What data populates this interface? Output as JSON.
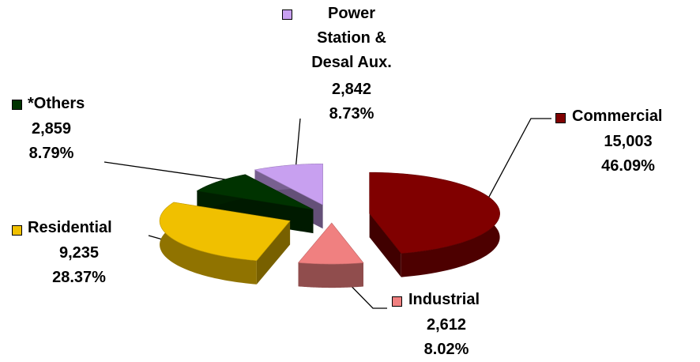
{
  "chart_data": {
    "type": "pie",
    "categories": [
      "Commercial",
      "Industrial",
      "Residential",
      "*Others",
      "Power Station & Desal Aux."
    ],
    "values": [
      15003,
      2612,
      9235,
      2859,
      2842
    ],
    "value_labels": [
      "15,003",
      "2,612",
      "9,235",
      "2,859",
      "2,842"
    ],
    "percents": [
      46.09,
      8.02,
      28.37,
      8.79,
      8.73
    ],
    "percent_labels": [
      "46.09%",
      "8.02%",
      "28.37%",
      "8.79%",
      "8.73%"
    ],
    "colors": [
      "#800000",
      "#f08080",
      "#f0c000",
      "#003300",
      "#c8a0f0"
    ]
  }
}
